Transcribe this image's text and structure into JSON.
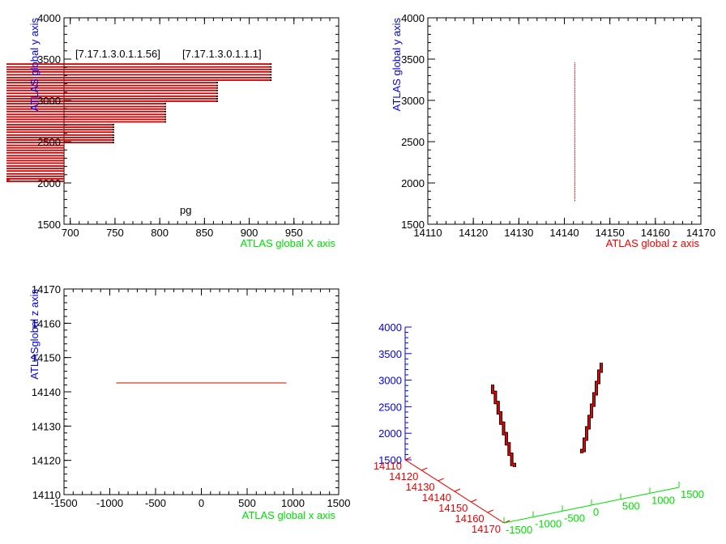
{
  "chart_data": [
    {
      "type": "bar",
      "orientation": "horizontal",
      "panel": "top-left",
      "xlabel": "ATLAS global X axis",
      "ylabel": "ATLAS global y axis",
      "xlim": [
        693,
        1000
      ],
      "ylim": [
        1500,
        4000
      ],
      "xticks": [
        700,
        750,
        800,
        850,
        900,
        950
      ],
      "yticks": [
        1500,
        2000,
        2500,
        3000,
        3500,
        4000
      ],
      "annotations": [
        "[7.17.1.3.0.1.1.56]",
        "[7.17.1.3.0.1.1.1]",
        "pg"
      ],
      "rows": [
        {
          "y": 3440,
          "x_end": 925
        },
        {
          "y": 3405,
          "x_end": 925
        },
        {
          "y": 3375,
          "x_end": 925
        },
        {
          "y": 3345,
          "x_end": 925
        },
        {
          "y": 3310,
          "x_end": 925
        },
        {
          "y": 3275,
          "x_end": 925
        },
        {
          "y": 3245,
          "x_end": 925
        },
        {
          "y": 3215,
          "x_end": 865
        },
        {
          "y": 3180,
          "x_end": 865
        },
        {
          "y": 3150,
          "x_end": 865
        },
        {
          "y": 3120,
          "x_end": 865
        },
        {
          "y": 3085,
          "x_end": 865
        },
        {
          "y": 3050,
          "x_end": 865
        },
        {
          "y": 3020,
          "x_end": 865
        },
        {
          "y": 2990,
          "x_end": 865
        },
        {
          "y": 2960,
          "x_end": 807
        },
        {
          "y": 2925,
          "x_end": 807
        },
        {
          "y": 2895,
          "x_end": 807
        },
        {
          "y": 2865,
          "x_end": 807
        },
        {
          "y": 2830,
          "x_end": 807
        },
        {
          "y": 2800,
          "x_end": 807
        },
        {
          "y": 2770,
          "x_end": 807
        },
        {
          "y": 2740,
          "x_end": 807
        },
        {
          "y": 2705,
          "x_end": 749
        },
        {
          "y": 2675,
          "x_end": 749
        },
        {
          "y": 2645,
          "x_end": 749
        },
        {
          "y": 2615,
          "x_end": 749
        },
        {
          "y": 2580,
          "x_end": 749
        },
        {
          "y": 2550,
          "x_end": 749
        },
        {
          "y": 2520,
          "x_end": 749
        },
        {
          "y": 2490,
          "x_end": 749
        },
        {
          "y": 2455,
          "x_end": 693
        },
        {
          "y": 2425,
          "x_end": 693
        },
        {
          "y": 2395,
          "x_end": 693
        },
        {
          "y": 2365,
          "x_end": 693
        },
        {
          "y": 2330,
          "x_end": 693
        },
        {
          "y": 2300,
          "x_end": 693
        },
        {
          "y": 2270,
          "x_end": 693
        },
        {
          "y": 2240,
          "x_end": 693
        },
        {
          "y": 2205,
          "x_end": 693
        },
        {
          "y": 2175,
          "x_end": 693
        },
        {
          "y": 2145,
          "x_end": 693
        },
        {
          "y": 2110,
          "x_end": 693
        },
        {
          "y": 2080,
          "x_end": 693
        },
        {
          "y": 2050,
          "x_end": 693
        },
        {
          "y": 2020,
          "x_end": 693
        }
      ]
    },
    {
      "type": "line",
      "panel": "top-right",
      "xlabel": "ATLAS global z axis",
      "ylabel": "ATLAS global y axis",
      "xlim": [
        14110,
        14170
      ],
      "ylim": [
        1500,
        4000
      ],
      "xticks": [
        14110,
        14120,
        14130,
        14140,
        14150,
        14160,
        14170
      ],
      "yticks": [
        1500,
        2000,
        2500,
        3000,
        3500,
        4000
      ],
      "segments": [
        {
          "x": [
            14142.3,
            14142.3
          ],
          "y": [
            1780,
            3460
          ]
        }
      ]
    },
    {
      "type": "line",
      "panel": "bottom-left",
      "xlabel": "ATLAS global x axis",
      "ylabel": "ATLAS global z axis",
      "ylabel_shown": "ATLASglobal z axis",
      "xlim": [
        -1500,
        1500
      ],
      "ylim": [
        14110,
        14170
      ],
      "xticks": [
        -1500,
        -1000,
        -500,
        0,
        500,
        1000,
        1500
      ],
      "yticks": [
        14110,
        14120,
        14130,
        14140,
        14150,
        14160,
        14170
      ],
      "segments": [
        {
          "x": [
            -930,
            930
          ],
          "y": [
            14142.6,
            14142.6
          ]
        }
      ]
    },
    {
      "type": "scatter",
      "panel": "bottom-right",
      "projection": "3d",
      "axes": {
        "vertical": {
          "ticks": [
            1500,
            2000,
            2500,
            3000,
            3500,
            4000
          ],
          "color": "#0000ee"
        },
        "left": {
          "ticks": [
            14110,
            14120,
            14130,
            14140,
            14150,
            14160,
            14170
          ],
          "color": "#ee0000"
        },
        "right": {
          "ticks": [
            -1500,
            -1000,
            -500,
            0,
            500,
            1000,
            1500
          ],
          "color": "#00dd00"
        }
      },
      "series": [
        {
          "color": "#ee0000",
          "outline": "#000000"
        },
        {
          "color": "#ee0000",
          "outline": "#000000"
        }
      ]
    }
  ],
  "colors": {
    "frame": "#000000",
    "bars": "#cc0000",
    "bar_outline": "#000000",
    "trace": "#dd0000",
    "x_title": "#00dd00",
    "z_title": "#ee0000",
    "y_title": "#0000ee"
  }
}
